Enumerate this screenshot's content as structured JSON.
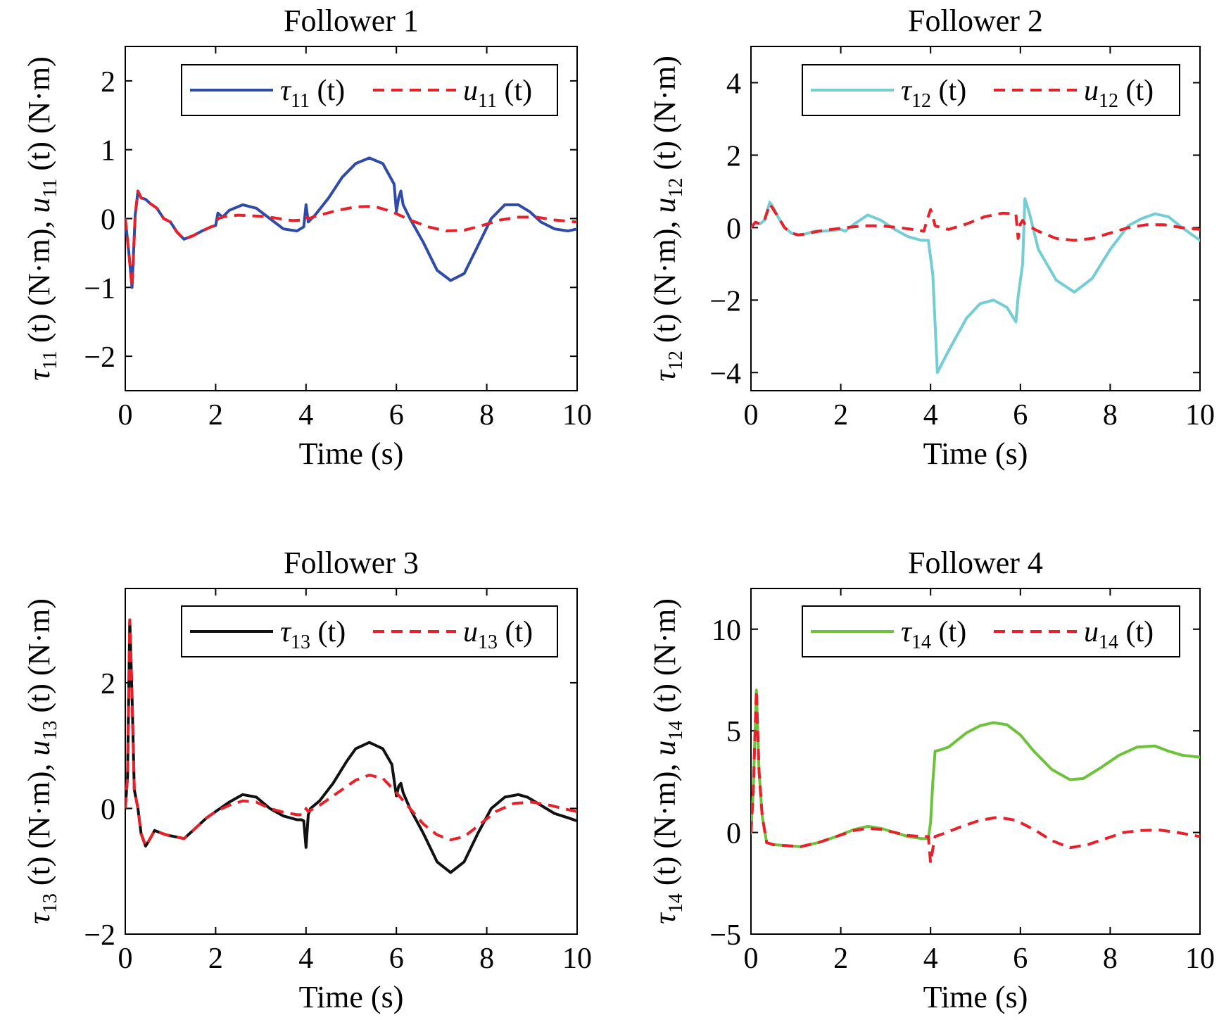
{
  "chart_data": [
    {
      "type": "line",
      "title": "Follower 1",
      "xlabel": "Time (s)",
      "ylabel": {
        "sym1": "τ",
        "sub1": "11",
        "mid": " (t) (N·m), ",
        "sym2": "u",
        "sub2": "11",
        "end": " (t) (N·m)"
      },
      "xlim": [
        0,
        10
      ],
      "ylim": [
        -2.5,
        2.5
      ],
      "xticks": [
        0,
        2,
        4,
        6,
        8,
        10
      ],
      "yticks": [
        -2,
        -1,
        0,
        1,
        2
      ],
      "ytick_labels": [
        "−2",
        "−1",
        "0",
        "1",
        "2"
      ],
      "legend_position": "top-right",
      "series": [
        {
          "name": "τ11 (t)",
          "sym": "τ",
          "sub": "11",
          "arg": " (t)",
          "color": "#2f4aa8",
          "style": "solid",
          "x": [
            0,
            0.08,
            0.15,
            0.22,
            0.28,
            0.35,
            0.45,
            0.55,
            0.7,
            0.85,
            1.0,
            1.15,
            1.3,
            1.5,
            1.7,
            1.9,
            2.0,
            2.05,
            2.15,
            2.3,
            2.6,
            2.9,
            3.2,
            3.5,
            3.8,
            3.95,
            4.0,
            4.05,
            4.2,
            4.5,
            4.8,
            5.1,
            5.4,
            5.7,
            5.95,
            6.0,
            6.05,
            6.1,
            6.15,
            6.3,
            6.6,
            6.9,
            7.2,
            7.5,
            7.8,
            8.1,
            8.4,
            8.7,
            8.95,
            9.2,
            9.5,
            9.8,
            10.0
          ],
          "y": [
            0,
            -0.5,
            -1.0,
            0.05,
            0.4,
            0.3,
            0.28,
            0.22,
            0.15,
            0.0,
            -0.05,
            -0.2,
            -0.3,
            -0.25,
            -0.18,
            -0.12,
            -0.1,
            0.08,
            0.02,
            0.12,
            0.2,
            0.15,
            0.0,
            -0.15,
            -0.18,
            -0.12,
            0.2,
            -0.05,
            0.05,
            0.3,
            0.6,
            0.8,
            0.88,
            0.8,
            0.5,
            0.1,
            0.3,
            0.4,
            0.2,
            0.0,
            -0.35,
            -0.75,
            -0.9,
            -0.8,
            -0.4,
            0.0,
            0.2,
            0.2,
            0.1,
            -0.05,
            -0.15,
            -0.18,
            -0.15
          ]
        },
        {
          "name": "u11 (t)",
          "sym": "u",
          "sub": "11",
          "arg": " (t)",
          "color": "#e8202a",
          "style": "dashed",
          "x": [
            0,
            0.08,
            0.15,
            0.22,
            0.28,
            0.35,
            0.45,
            0.55,
            0.7,
            0.85,
            1.0,
            1.15,
            1.3,
            1.5,
            1.7,
            1.9,
            2.0,
            2.05,
            2.2,
            2.5,
            2.8,
            3.1,
            3.4,
            3.7,
            3.95,
            4.0,
            4.05,
            4.3,
            4.7,
            5.1,
            5.5,
            5.9,
            6.3,
            6.7,
            7.1,
            7.5,
            7.9,
            8.3,
            8.7,
            9.1,
            9.5,
            10.0
          ],
          "y": [
            0,
            -0.5,
            -1.0,
            0.05,
            0.4,
            0.3,
            0.28,
            0.22,
            0.15,
            0.0,
            -0.05,
            -0.2,
            -0.3,
            -0.25,
            -0.18,
            -0.12,
            -0.1,
            0.0,
            0.03,
            0.05,
            0.04,
            0.03,
            0.0,
            -0.03,
            -0.02,
            0.02,
            0.0,
            0.05,
            0.12,
            0.17,
            0.18,
            0.1,
            -0.02,
            -0.12,
            -0.18,
            -0.17,
            -0.1,
            -0.02,
            0.02,
            0.02,
            -0.02,
            -0.05
          ]
        }
      ]
    },
    {
      "type": "line",
      "title": "Follower 2",
      "xlabel": "Time (s)",
      "ylabel": {
        "sym1": "τ",
        "sub1": "12",
        "mid": " (t) (N·m), ",
        "sym2": "u",
        "sub2": "12",
        "end": " (t) (N·m)"
      },
      "xlim": [
        0,
        10
      ],
      "ylim": [
        -4.5,
        5
      ],
      "xticks": [
        0,
        2,
        4,
        6,
        8,
        10
      ],
      "yticks": [
        -4,
        -2,
        0,
        2,
        4
      ],
      "ytick_labels": [
        "−4",
        "−2",
        "0",
        "2",
        "4"
      ],
      "legend_position": "top-right",
      "series": [
        {
          "name": "τ12 (t)",
          "sym": "τ",
          "sub": "12",
          "arg": " (t)",
          "color": "#72cdd4",
          "style": "solid",
          "x": [
            0,
            0.1,
            0.2,
            0.3,
            0.42,
            0.5,
            0.6,
            0.75,
            0.9,
            1.05,
            1.2,
            1.4,
            1.6,
            1.8,
            2.0,
            2.1,
            2.3,
            2.6,
            2.9,
            3.2,
            3.5,
            3.8,
            3.95,
            4.05,
            4.15,
            4.4,
            4.8,
            5.1,
            5.4,
            5.7,
            5.9,
            5.95,
            6.05,
            6.1,
            6.2,
            6.4,
            6.8,
            7.2,
            7.6,
            8.0,
            8.4,
            8.7,
            9.0,
            9.3,
            9.6,
            10.0
          ],
          "y": [
            0,
            0.15,
            0.1,
            0.2,
            0.7,
            0.55,
            0.3,
            0.0,
            -0.15,
            -0.2,
            -0.18,
            -0.1,
            -0.1,
            -0.08,
            -0.05,
            -0.1,
            0.1,
            0.35,
            0.2,
            -0.05,
            -0.25,
            -0.35,
            -0.35,
            -1.3,
            -4.0,
            -3.4,
            -2.5,
            -2.1,
            -2.0,
            -2.2,
            -2.6,
            -1.9,
            -1.0,
            0.8,
            0.4,
            -0.6,
            -1.45,
            -1.78,
            -1.4,
            -0.6,
            0.05,
            0.25,
            0.38,
            0.3,
            0.0,
            -0.35
          ]
        },
        {
          "name": "u12 (t)",
          "sym": "u",
          "sub": "12",
          "arg": " (t)",
          "color": "#e8202a",
          "style": "dashed",
          "x": [
            0,
            0.1,
            0.2,
            0.3,
            0.42,
            0.5,
            0.6,
            0.75,
            0.9,
            1.05,
            1.2,
            1.5,
            1.8,
            2.1,
            2.5,
            2.9,
            3.3,
            3.6,
            3.85,
            3.92,
            4.0,
            4.05,
            4.1,
            4.4,
            4.8,
            5.2,
            5.6,
            5.9,
            5.95,
            6.0,
            6.05,
            6.1,
            6.4,
            6.8,
            7.2,
            7.6,
            8.0,
            8.4,
            8.8,
            9.2,
            9.6,
            10.0
          ],
          "y": [
            0,
            0.15,
            0.1,
            0.2,
            0.65,
            0.5,
            0.3,
            0.0,
            -0.15,
            -0.2,
            -0.18,
            -0.1,
            -0.05,
            0.0,
            0.05,
            0.05,
            0.0,
            -0.05,
            -0.1,
            0.2,
            0.5,
            0.3,
            0.05,
            -0.05,
            0.1,
            0.3,
            0.4,
            0.38,
            -0.3,
            0.1,
            0.2,
            0.1,
            -0.1,
            -0.3,
            -0.35,
            -0.3,
            -0.15,
            0.0,
            0.08,
            0.08,
            0.0,
            -0.05
          ]
        }
      ]
    },
    {
      "type": "line",
      "title": "Follower 3",
      "xlabel": "Time (s)",
      "ylabel": {
        "sym1": "τ",
        "sub1": "13",
        "mid": " (t) (N·m), ",
        "sym2": "u",
        "sub2": "13",
        "end": " (t) (N·m)"
      },
      "xlim": [
        0,
        10
      ],
      "ylim": [
        -2,
        3.5
      ],
      "xticks": [
        0,
        2,
        4,
        6,
        8,
        10
      ],
      "yticks": [
        -2,
        0,
        2
      ],
      "ytick_labels": [
        "−2",
        "0",
        "2"
      ],
      "legend_position": "top-right",
      "series": [
        {
          "name": "τ13 (t)",
          "sym": "τ",
          "sub": "13",
          "arg": " (t)",
          "color": "#111111",
          "style": "solid",
          "x": [
            0,
            0.05,
            0.1,
            0.15,
            0.2,
            0.28,
            0.35,
            0.45,
            0.55,
            0.65,
            0.75,
            0.9,
            1.1,
            1.3,
            1.5,
            1.8,
            2.0,
            2.3,
            2.6,
            2.9,
            3.2,
            3.5,
            3.8,
            3.9,
            3.95,
            4.0,
            4.05,
            4.1,
            4.3,
            4.6,
            4.9,
            5.1,
            5.4,
            5.7,
            5.9,
            6.0,
            6.05,
            6.1,
            6.15,
            6.3,
            6.6,
            6.9,
            7.2,
            7.5,
            7.8,
            8.1,
            8.4,
            8.7,
            8.9,
            9.2,
            9.5,
            9.8,
            10.0
          ],
          "y": [
            0,
            0.5,
            3.0,
            1.8,
            0.3,
            0.0,
            -0.4,
            -0.6,
            -0.48,
            -0.35,
            -0.38,
            -0.42,
            -0.45,
            -0.48,
            -0.35,
            -0.15,
            -0.05,
            0.1,
            0.22,
            0.18,
            0.0,
            -0.12,
            -0.18,
            -0.18,
            -0.2,
            -0.62,
            -0.1,
            0.0,
            0.12,
            0.4,
            0.75,
            0.95,
            1.05,
            0.95,
            0.7,
            0.2,
            0.35,
            0.4,
            0.25,
            0.0,
            -0.4,
            -0.85,
            -1.02,
            -0.85,
            -0.4,
            0.0,
            0.18,
            0.22,
            0.18,
            0.05,
            -0.08,
            -0.15,
            -0.2
          ]
        },
        {
          "name": "u13 (t)",
          "sym": "u",
          "sub": "13",
          "arg": " (t)",
          "color": "#e8202a",
          "style": "dashed",
          "x": [
            0,
            0.05,
            0.1,
            0.15,
            0.2,
            0.28,
            0.35,
            0.45,
            0.55,
            0.65,
            0.75,
            0.9,
            1.1,
            1.3,
            1.5,
            1.8,
            2.0,
            2.3,
            2.6,
            2.9,
            3.2,
            3.5,
            3.8,
            3.9,
            3.95,
            4.0,
            4.05,
            4.3,
            4.7,
            5.1,
            5.4,
            5.7,
            6.0,
            6.3,
            6.6,
            6.9,
            7.2,
            7.5,
            7.8,
            8.2,
            8.6,
            9.0,
            9.4,
            9.8,
            10.0
          ],
          "y": [
            0,
            0.5,
            3.0,
            1.8,
            0.3,
            0.0,
            -0.4,
            -0.6,
            -0.48,
            -0.35,
            -0.38,
            -0.42,
            -0.45,
            -0.48,
            -0.35,
            -0.15,
            -0.05,
            0.05,
            0.12,
            0.1,
            0.0,
            -0.06,
            -0.1,
            -0.1,
            -0.1,
            0.0,
            -0.05,
            0.05,
            0.25,
            0.45,
            0.53,
            0.48,
            0.25,
            0.0,
            -0.25,
            -0.42,
            -0.5,
            -0.45,
            -0.28,
            -0.05,
            0.08,
            0.1,
            0.05,
            -0.02,
            -0.05
          ]
        }
      ]
    },
    {
      "type": "line",
      "title": "Follower 4",
      "xlabel": "Time (s)",
      "ylabel": {
        "sym1": "τ",
        "sub1": "14",
        "mid": " (t) (N·m), ",
        "sym2": "u",
        "sub2": "14",
        "end": " (t) (N·m)"
      },
      "xlim": [
        0,
        10
      ],
      "ylim": [
        -5,
        12
      ],
      "xticks": [
        0,
        2,
        4,
        6,
        8,
        10
      ],
      "yticks": [
        -5,
        0,
        5,
        10
      ],
      "ytick_labels": [
        "−5",
        "0",
        "5",
        "10"
      ],
      "legend_position": "top-right",
      "series": [
        {
          "name": "τ14 (t)",
          "sym": "τ",
          "sub": "14",
          "arg": " (t)",
          "color": "#6cc23a",
          "style": "solid",
          "x": [
            0,
            0.05,
            0.12,
            0.18,
            0.25,
            0.35,
            0.5,
            0.8,
            1.1,
            1.5,
            1.9,
            2.3,
            2.6,
            2.9,
            3.2,
            3.5,
            3.8,
            3.95,
            4.0,
            4.05,
            4.1,
            4.2,
            4.4,
            4.8,
            5.1,
            5.4,
            5.7,
            6.0,
            6.3,
            6.7,
            7.1,
            7.4,
            7.8,
            8.2,
            8.6,
            9.0,
            9.3,
            9.6,
            10.0
          ],
          "y": [
            0,
            2.0,
            7.0,
            3.0,
            0.8,
            -0.5,
            -0.6,
            -0.65,
            -0.7,
            -0.5,
            -0.2,
            0.15,
            0.3,
            0.2,
            0.0,
            -0.2,
            -0.3,
            -0.3,
            0.5,
            2.5,
            4.0,
            4.05,
            4.2,
            4.9,
            5.25,
            5.4,
            5.3,
            4.8,
            4.0,
            3.1,
            2.6,
            2.65,
            3.2,
            3.8,
            4.2,
            4.25,
            4.0,
            3.8,
            3.7
          ]
        },
        {
          "name": "u14 (t)",
          "sym": "u",
          "sub": "14",
          "arg": " (t)",
          "color": "#e8202a",
          "style": "dashed",
          "x": [
            0,
            0.05,
            0.12,
            0.18,
            0.25,
            0.35,
            0.5,
            0.8,
            1.1,
            1.5,
            1.9,
            2.3,
            2.6,
            2.9,
            3.2,
            3.5,
            3.8,
            3.95,
            4.0,
            4.05,
            4.1,
            4.3,
            4.7,
            5.1,
            5.5,
            5.9,
            6.3,
            6.7,
            7.1,
            7.5,
            7.9,
            8.3,
            8.7,
            9.1,
            9.5,
            10.0
          ],
          "y": [
            0,
            2.0,
            7.0,
            3.0,
            0.8,
            -0.5,
            -0.6,
            -0.65,
            -0.7,
            -0.5,
            -0.2,
            0.1,
            0.2,
            0.15,
            0.0,
            -0.15,
            -0.2,
            -0.2,
            -1.5,
            -0.8,
            -0.2,
            -0.05,
            0.3,
            0.6,
            0.75,
            0.6,
            0.15,
            -0.4,
            -0.75,
            -0.6,
            -0.3,
            0.0,
            0.1,
            0.12,
            0.0,
            -0.2
          ]
        }
      ]
    }
  ]
}
